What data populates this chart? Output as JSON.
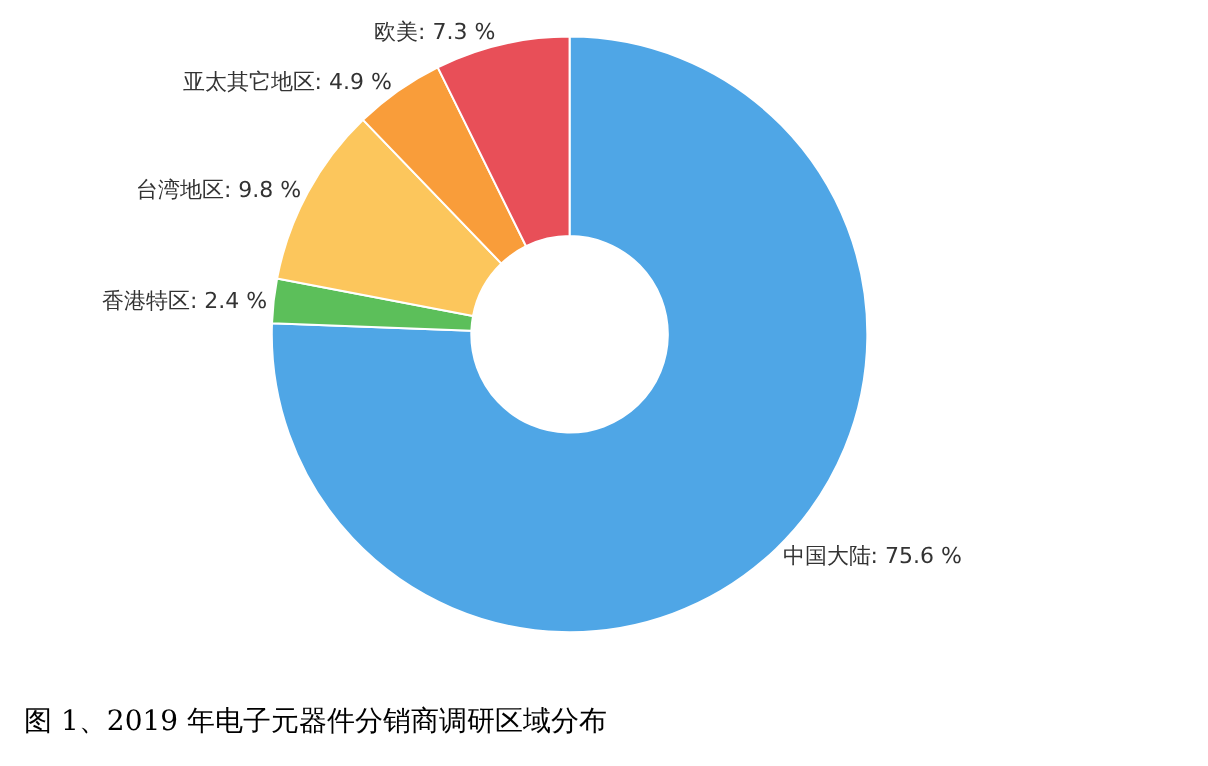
{
  "chart_data": {
    "type": "donut",
    "title": "图 1、2019 年电子元器件分销商调研区域分布",
    "categories": [
      "中国大陆",
      "香港特区",
      "台湾地区",
      "亚太其它地区",
      "欧美"
    ],
    "values": [
      75.6,
      2.4,
      9.8,
      4.9,
      7.3
    ],
    "value_labels": [
      "75.6 %",
      "2.4 %",
      "9.8 %",
      "4.9 %",
      "7.3 %"
    ],
    "colors": [
      "#4fa6e6",
      "#5cbf5a",
      "#fcc65c",
      "#f99d3a",
      "#e84f58"
    ],
    "legend": false
  }
}
